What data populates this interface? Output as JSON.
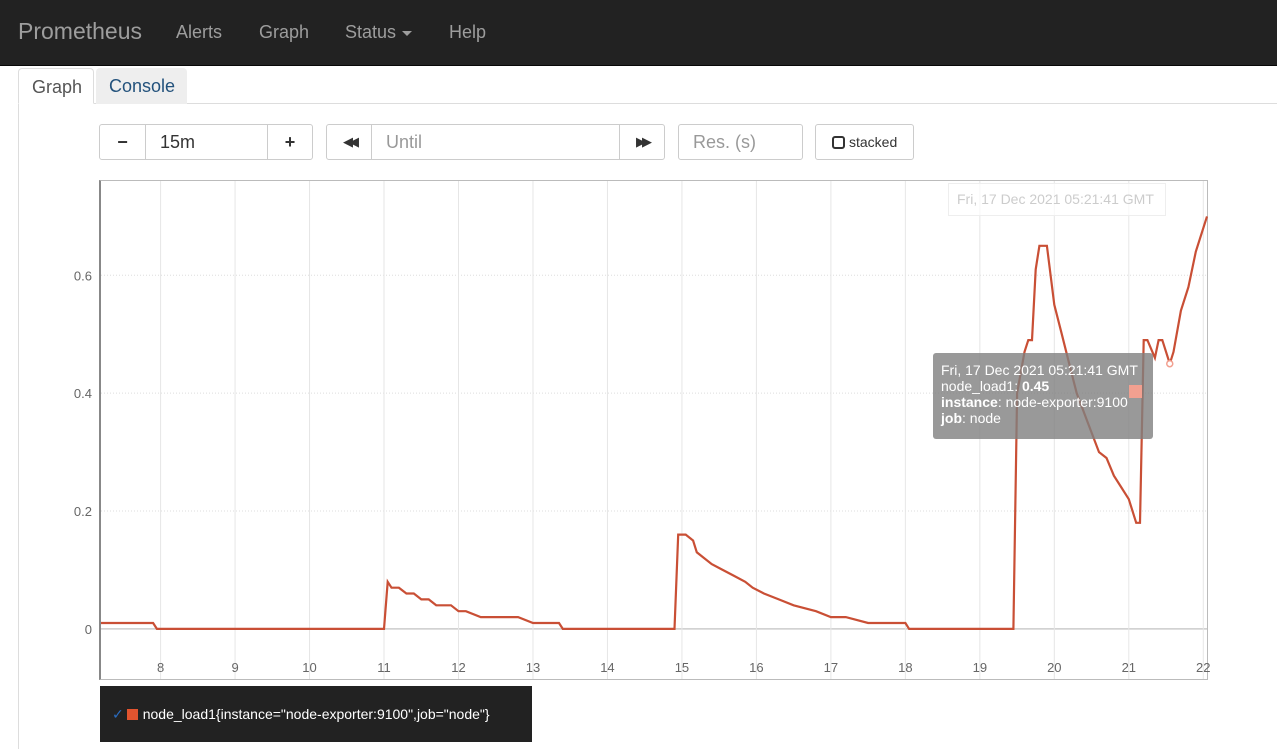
{
  "navbar": {
    "brand": "Prometheus",
    "items": [
      {
        "label": "Alerts"
      },
      {
        "label": "Graph"
      },
      {
        "label": "Status"
      },
      {
        "label": "Help"
      }
    ]
  },
  "tabs": [
    {
      "label": "Graph",
      "active": true
    },
    {
      "label": "Console",
      "active": false
    }
  ],
  "controls": {
    "minus": "−",
    "range_value": "15m",
    "plus": "+",
    "back": "◀◀",
    "until_placeholder": "Until",
    "forward": "▶▶",
    "res_placeholder": "Res. (s)",
    "stacked_label": "stacked"
  },
  "graph": {
    "hover_time": "Fri, 17 Dec 2021 05:21:41 GMT",
    "tooltip": {
      "time": "Fri, 17 Dec 2021 05:21:41 GMT",
      "metric": "node_load1",
      "value": "0.45",
      "instance_key": "instance",
      "instance_value": "node-exporter:9100",
      "job_key": "job",
      "job_value": "node"
    },
    "series_color": "#c94f35"
  },
  "chart_data": {
    "type": "line",
    "x_ticks": [
      "8",
      "9",
      "10",
      "11",
      "12",
      "13",
      "14",
      "15",
      "16",
      "17",
      "18",
      "19",
      "20",
      "21",
      "22"
    ],
    "y_ticks": [
      "0",
      "0.2",
      "0.4",
      "0.6"
    ],
    "ylim": [
      -0.085,
      0.76
    ],
    "xlim": [
      7.2,
      22.05
    ],
    "grid": true,
    "series": [
      {
        "name": "node_load1{instance=\"node-exporter:9100\",job=\"node\"}",
        "x": [
          7.2,
          7.7,
          7.9,
          7.95,
          11.0,
          11.05,
          11.1,
          11.2,
          11.3,
          11.4,
          11.5,
          11.6,
          11.7,
          11.9,
          12.0,
          12.1,
          12.3,
          12.4,
          12.6,
          12.8,
          13.0,
          13.2,
          13.35,
          13.4,
          14.5,
          14.9,
          14.95,
          15.05,
          15.15,
          15.2,
          15.3,
          15.4,
          15.55,
          15.7,
          15.85,
          15.95,
          16.1,
          16.3,
          16.5,
          16.8,
          17.0,
          17.2,
          17.5,
          17.7,
          18.0,
          18.05,
          19.0,
          19.45,
          19.5,
          19.6,
          19.65,
          19.7,
          19.75,
          19.8,
          19.9,
          19.95,
          20.0,
          20.1,
          20.2,
          20.3,
          20.45,
          20.6,
          20.7,
          20.8,
          20.9,
          21.0,
          21.1,
          21.15,
          21.2,
          21.25,
          21.35,
          21.4,
          21.45,
          21.55,
          21.6,
          21.7,
          21.8,
          21.9,
          22.05
        ],
        "y": [
          0.01,
          0.01,
          0.01,
          0.0,
          0.0,
          0.08,
          0.07,
          0.07,
          0.06,
          0.06,
          0.05,
          0.05,
          0.04,
          0.04,
          0.03,
          0.03,
          0.02,
          0.02,
          0.02,
          0.02,
          0.01,
          0.01,
          0.01,
          0.0,
          0.0,
          0.0,
          0.16,
          0.16,
          0.15,
          0.13,
          0.12,
          0.11,
          0.1,
          0.09,
          0.08,
          0.07,
          0.06,
          0.05,
          0.04,
          0.03,
          0.02,
          0.02,
          0.01,
          0.01,
          0.01,
          0.0,
          0.0,
          0.0,
          0.4,
          0.47,
          0.49,
          0.49,
          0.61,
          0.65,
          0.65,
          0.6,
          0.55,
          0.5,
          0.45,
          0.4,
          0.35,
          0.3,
          0.29,
          0.26,
          0.24,
          0.22,
          0.18,
          0.18,
          0.49,
          0.49,
          0.46,
          0.49,
          0.49,
          0.45,
          0.47,
          0.54,
          0.58,
          0.64,
          0.7
        ]
      }
    ]
  },
  "legend": {
    "check": "✓",
    "label": "node_load1{instance=\"node-exporter:9100\",job=\"node\"}"
  }
}
